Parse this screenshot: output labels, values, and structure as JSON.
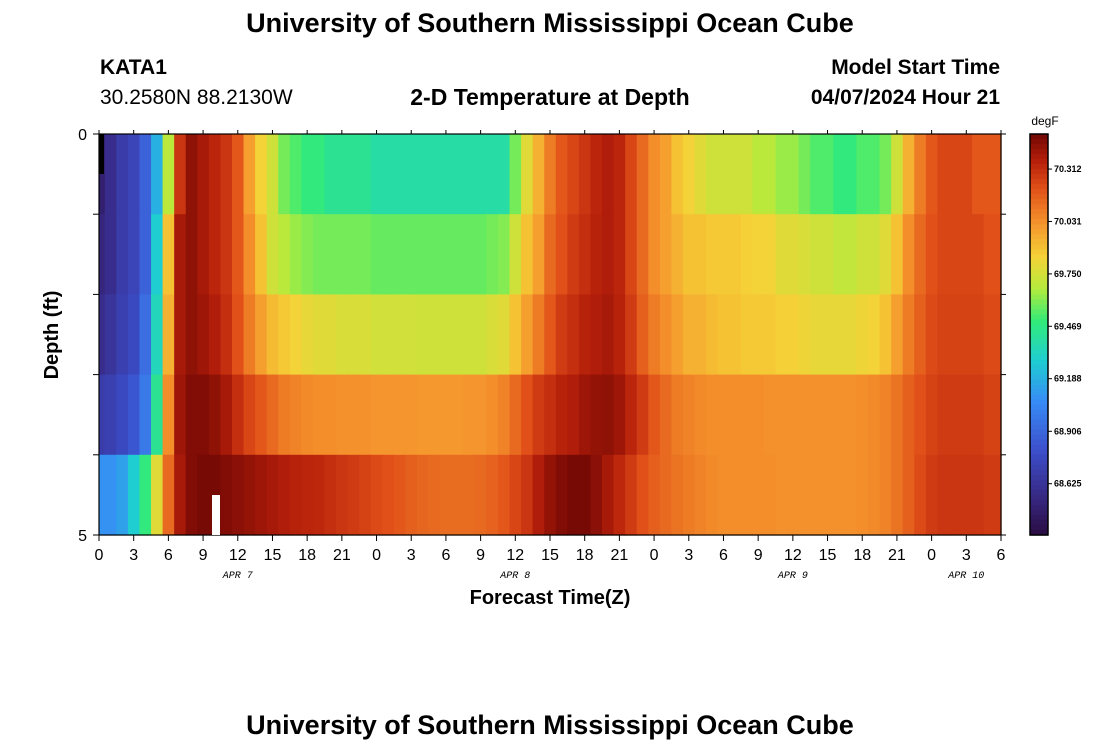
{
  "page": {
    "title": "University of Southern Mississippi Ocean Cube",
    "bottom_title": "University of Southern Mississippi Ocean Cube",
    "station_id": "KATA1",
    "station_coords": "30.2580N  88.2130W",
    "plot_title": "2-D Temperature at Depth",
    "model_start_label": "Model Start Time",
    "model_start_value": "04/07/2024 Hour 21"
  },
  "chart_data": {
    "type": "heatmap",
    "title": "2-D Temperature at Depth",
    "xlabel": "Forecast Time(Z)",
    "ylabel": "Depth (ft)",
    "x_tick_labels": [
      "0",
      "3",
      "6",
      "9",
      "12",
      "15",
      "18",
      "21",
      "0",
      "3",
      "6",
      "9",
      "12",
      "15",
      "18",
      "21",
      "0",
      "3",
      "6",
      "9",
      "12",
      "15",
      "18",
      "21",
      "0",
      "3",
      "6"
    ],
    "x_range_hours": [
      0,
      78
    ],
    "day_labels": [
      {
        "label": "APR 7",
        "hour": 12
      },
      {
        "label": "APR 8",
        "hour": 36
      },
      {
        "label": "APR 9",
        "hour": 60
      },
      {
        "label": "APR 10",
        "hour": 75
      }
    ],
    "y_tick_labels": [
      "0",
      "5"
    ],
    "ylim": [
      0,
      5
    ],
    "depth_layers": 5,
    "colorbar": {
      "unit": "degF",
      "min": 68.35,
      "max": 70.5,
      "tick_values": [
        "70.312",
        "70.031",
        "69.750",
        "69.469",
        "69.188",
        "68.906",
        "68.625"
      ]
    },
    "times_hours": [
      0,
      1,
      2,
      3,
      4,
      5,
      6,
      7,
      8,
      9,
      10,
      11,
      12,
      13,
      14,
      15,
      16,
      17,
      18,
      19,
      20,
      21,
      22,
      23,
      24,
      25,
      26,
      27,
      28,
      29,
      30,
      31,
      32,
      33,
      34,
      35,
      36,
      37,
      38,
      39,
      40,
      41,
      42,
      43,
      44,
      45,
      46,
      47,
      48,
      49,
      50,
      51,
      52,
      53,
      54,
      55,
      56,
      57,
      58,
      59,
      60,
      61,
      62,
      63,
      64,
      65,
      66,
      67,
      68,
      69,
      70,
      71,
      72,
      73,
      74,
      75,
      76,
      77,
      78
    ],
    "series": [
      {
        "name": "0-1 ft",
        "values": [
          68.5,
          68.6,
          68.7,
          68.75,
          68.9,
          69.2,
          69.7,
          70.3,
          70.45,
          70.4,
          70.35,
          70.3,
          70.2,
          70.0,
          69.85,
          69.75,
          69.6,
          69.55,
          69.5,
          69.5,
          69.45,
          69.45,
          69.45,
          69.45,
          69.4,
          69.4,
          69.4,
          69.4,
          69.4,
          69.4,
          69.4,
          69.4,
          69.4,
          69.4,
          69.4,
          69.4,
          69.6,
          69.8,
          69.95,
          70.1,
          70.2,
          70.25,
          70.3,
          70.35,
          70.38,
          70.35,
          70.25,
          70.15,
          70.05,
          70.0,
          69.9,
          69.85,
          69.8,
          69.75,
          69.75,
          69.75,
          69.75,
          69.7,
          69.7,
          69.65,
          69.65,
          69.6,
          69.55,
          69.55,
          69.5,
          69.5,
          69.55,
          69.55,
          69.6,
          69.75,
          69.95,
          70.1,
          70.2,
          70.25,
          70.25,
          70.25,
          70.2,
          70.2,
          70.2
        ]
      },
      {
        "name": "1-2 ft",
        "values": [
          68.55,
          68.6,
          68.7,
          68.75,
          68.9,
          69.3,
          69.9,
          70.4,
          70.45,
          70.4,
          70.35,
          70.3,
          70.2,
          70.05,
          69.9,
          69.75,
          69.7,
          69.65,
          69.62,
          69.6,
          69.6,
          69.6,
          69.6,
          69.6,
          69.58,
          69.58,
          69.58,
          69.58,
          69.58,
          69.58,
          69.58,
          69.58,
          69.58,
          69.58,
          69.6,
          69.62,
          69.75,
          69.9,
          70.0,
          70.15,
          70.22,
          70.28,
          70.32,
          70.36,
          70.38,
          70.35,
          70.25,
          70.15,
          70.05,
          70.0,
          69.95,
          69.9,
          69.9,
          69.88,
          69.88,
          69.88,
          69.86,
          69.85,
          69.85,
          69.8,
          69.8,
          69.78,
          69.75,
          69.75,
          69.72,
          69.72,
          69.75,
          69.75,
          69.8,
          69.9,
          70.05,
          70.15,
          70.22,
          70.25,
          70.25,
          70.25,
          70.25,
          70.22,
          70.22
        ]
      },
      {
        "name": "2-3 ft",
        "values": [
          68.6,
          68.65,
          68.72,
          68.78,
          68.95,
          69.35,
          69.95,
          70.4,
          70.45,
          70.42,
          70.38,
          70.32,
          70.22,
          70.1,
          70.0,
          69.92,
          69.88,
          69.85,
          69.82,
          69.8,
          69.8,
          69.78,
          69.78,
          69.78,
          69.76,
          69.76,
          69.76,
          69.76,
          69.75,
          69.75,
          69.75,
          69.75,
          69.75,
          69.75,
          69.78,
          69.8,
          69.9,
          70.0,
          70.1,
          70.2,
          70.28,
          70.32,
          70.36,
          70.38,
          70.4,
          70.36,
          70.28,
          70.18,
          70.1,
          70.05,
          70.0,
          69.95,
          69.95,
          69.92,
          69.9,
          69.9,
          69.88,
          69.88,
          69.88,
          69.86,
          69.86,
          69.84,
          69.82,
          69.82,
          69.82,
          69.82,
          69.84,
          69.85,
          69.9,
          70.0,
          70.1,
          70.18,
          70.24,
          70.26,
          70.26,
          70.26,
          70.26,
          70.24,
          70.24
        ]
      },
      {
        "name": "3-4 ft",
        "values": [
          68.7,
          68.72,
          68.78,
          68.85,
          69.0,
          69.45,
          70.05,
          70.42,
          70.48,
          70.48,
          70.45,
          70.4,
          70.32,
          70.25,
          70.2,
          70.15,
          70.1,
          70.08,
          70.06,
          70.05,
          70.05,
          70.04,
          70.04,
          70.04,
          70.03,
          70.03,
          70.03,
          70.03,
          70.02,
          70.02,
          70.02,
          70.02,
          70.03,
          70.03,
          70.05,
          70.08,
          70.15,
          70.22,
          70.28,
          70.32,
          70.36,
          70.38,
          70.42,
          70.44,
          70.45,
          70.42,
          70.35,
          70.28,
          70.2,
          70.15,
          70.1,
          70.08,
          70.06,
          70.05,
          70.05,
          70.05,
          70.05,
          70.05,
          70.04,
          70.04,
          70.04,
          70.04,
          70.04,
          70.04,
          70.04,
          70.04,
          70.05,
          70.06,
          70.08,
          70.12,
          70.18,
          70.22,
          70.26,
          70.28,
          70.28,
          70.28,
          70.28,
          70.26,
          70.26
        ]
      },
      {
        "name": "4-5 ft",
        "values": [
          69.1,
          69.1,
          69.15,
          69.3,
          69.5,
          69.8,
          70.15,
          70.4,
          70.48,
          70.5,
          70.5,
          70.48,
          70.46,
          70.44,
          70.42,
          70.4,
          70.38,
          70.36,
          70.35,
          70.34,
          70.32,
          70.3,
          70.28,
          70.26,
          70.24,
          70.22,
          70.2,
          70.18,
          70.16,
          70.15,
          70.14,
          70.14,
          70.14,
          70.15,
          70.17,
          70.2,
          70.25,
          70.3,
          70.38,
          70.44,
          70.48,
          70.5,
          70.5,
          70.46,
          70.4,
          70.34,
          70.28,
          70.22,
          70.18,
          70.15,
          70.12,
          70.1,
          70.08,
          70.06,
          70.05,
          70.05,
          70.05,
          70.05,
          70.05,
          70.04,
          70.04,
          70.04,
          70.04,
          70.04,
          70.04,
          70.04,
          70.05,
          70.06,
          70.08,
          70.12,
          70.18,
          70.24,
          70.28,
          70.3,
          70.3,
          70.3,
          70.3,
          70.28,
          70.28
        ]
      }
    ]
  }
}
